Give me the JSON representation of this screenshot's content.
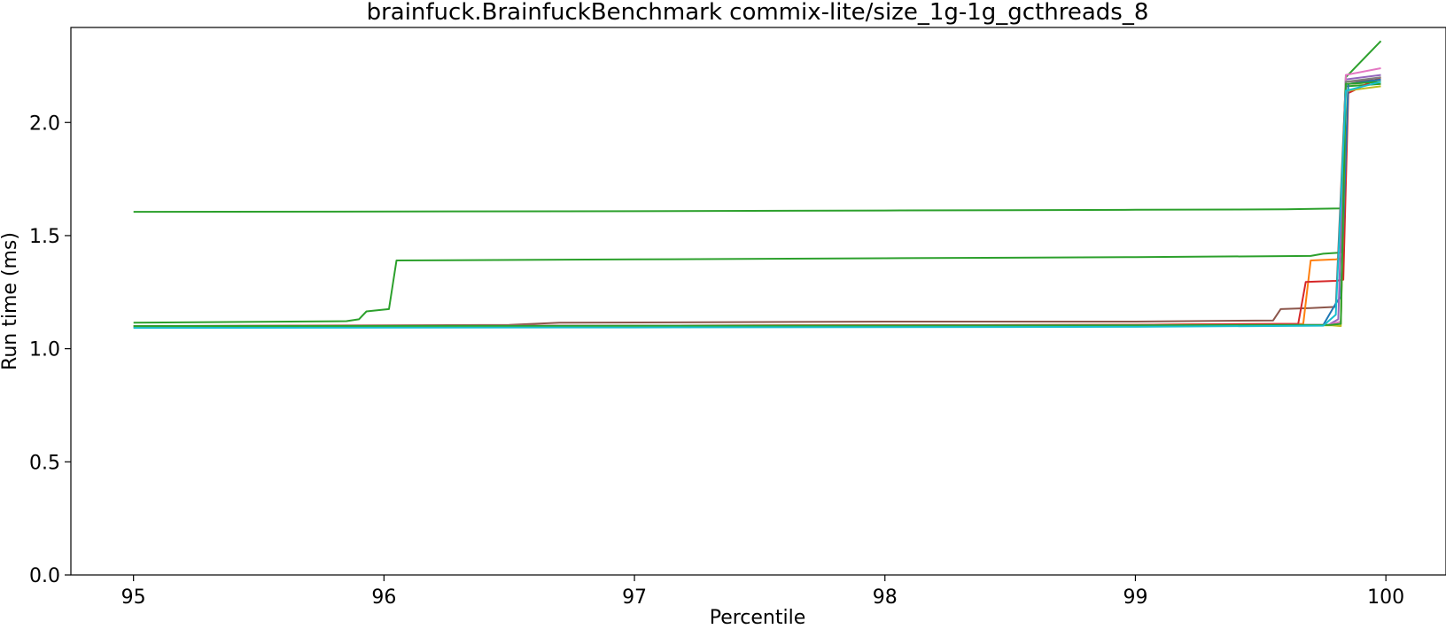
{
  "chart_data": {
    "type": "line",
    "title": "brainfuck.BrainfuckBenchmark commix-lite/size_1g-1g_gcthreads_8",
    "xlabel": "Percentile",
    "ylabel": "Run time (ms)",
    "xlim": [
      94.75,
      100.24
    ],
    "ylim": [
      0.0,
      2.42
    ],
    "xticks": [
      "95",
      "96",
      "97",
      "98",
      "99",
      "100"
    ],
    "yticks": [
      "0.0",
      "0.5",
      "1.0",
      "1.5",
      "2.0"
    ],
    "grid": false,
    "legend": "none",
    "series": [
      {
        "color": "#2ca02c",
        "points": [
          [
            95,
            1.605
          ],
          [
            97,
            1.608
          ],
          [
            98,
            1.611
          ],
          [
            99,
            1.614
          ],
          [
            99.6,
            1.616
          ],
          [
            99.82,
            1.62
          ],
          [
            99.84,
            2.2
          ],
          [
            99.98,
            2.36
          ]
        ]
      },
      {
        "color": "#2ca02c",
        "points": [
          [
            95,
            1.115
          ],
          [
            95.85,
            1.122
          ],
          [
            95.9,
            1.13
          ],
          [
            95.93,
            1.165
          ],
          [
            96.02,
            1.175
          ],
          [
            96.05,
            1.39
          ],
          [
            97,
            1.395
          ],
          [
            98,
            1.4
          ],
          [
            99,
            1.405
          ],
          [
            99.7,
            1.41
          ],
          [
            99.75,
            1.42
          ],
          [
            99.82,
            1.425
          ],
          [
            99.84,
            2.16
          ],
          [
            99.98,
            2.17
          ]
        ]
      },
      {
        "color": "#8c564b",
        "points": [
          [
            95,
            1.1
          ],
          [
            96.5,
            1.105
          ],
          [
            96.7,
            1.115
          ],
          [
            98,
            1.12
          ],
          [
            99,
            1.12
          ],
          [
            99.55,
            1.125
          ],
          [
            99.58,
            1.175
          ],
          [
            99.7,
            1.18
          ],
          [
            99.8,
            1.185
          ],
          [
            99.84,
            2.18
          ],
          [
            99.98,
            2.19
          ]
        ]
      },
      {
        "color": "#ff7f0e",
        "points": [
          [
            95,
            1.1
          ],
          [
            97,
            1.102
          ],
          [
            98,
            1.104
          ],
          [
            99,
            1.106
          ],
          [
            99.67,
            1.11
          ],
          [
            99.7,
            1.39
          ],
          [
            99.8,
            1.395
          ],
          [
            99.83,
            1.4
          ],
          [
            99.85,
            2.17
          ],
          [
            99.98,
            2.18
          ]
        ]
      },
      {
        "color": "#d62728",
        "points": [
          [
            95,
            1.1
          ],
          [
            97,
            1.102
          ],
          [
            99,
            1.106
          ],
          [
            99.65,
            1.11
          ],
          [
            99.68,
            1.295
          ],
          [
            99.8,
            1.3
          ],
          [
            99.83,
            1.305
          ],
          [
            99.85,
            2.13
          ],
          [
            99.98,
            2.2
          ]
        ]
      },
      {
        "color": "#1f77b4",
        "points": [
          [
            95,
            1.095
          ],
          [
            97,
            1.097
          ],
          [
            99,
            1.1
          ],
          [
            99.75,
            1.105
          ],
          [
            99.8,
            1.2
          ],
          [
            99.82,
            1.23
          ],
          [
            99.85,
            2.17
          ],
          [
            99.98,
            2.19
          ]
        ]
      },
      {
        "color": "#9467bd",
        "points": [
          [
            95,
            1.095
          ],
          [
            97,
            1.097
          ],
          [
            99,
            1.1
          ],
          [
            99.77,
            1.105
          ],
          [
            99.81,
            1.13
          ],
          [
            99.84,
            2.19
          ],
          [
            99.98,
            2.21
          ]
        ]
      },
      {
        "color": "#e377c2",
        "points": [
          [
            95,
            1.1
          ],
          [
            97,
            1.102
          ],
          [
            99,
            1.104
          ],
          [
            99.77,
            1.106
          ],
          [
            99.82,
            1.12
          ],
          [
            99.84,
            2.21
          ],
          [
            99.98,
            2.24
          ]
        ]
      },
      {
        "color": "#7f7f7f",
        "points": [
          [
            95,
            1.1
          ],
          [
            97,
            1.101
          ],
          [
            99,
            1.103
          ],
          [
            99.78,
            1.105
          ],
          [
            99.82,
            1.11
          ],
          [
            99.84,
            2.18
          ],
          [
            99.98,
            2.2
          ]
        ]
      },
      {
        "color": "#bcbd22",
        "points": [
          [
            95,
            1.098
          ],
          [
            97,
            1.1
          ],
          [
            99,
            1.102
          ],
          [
            99.78,
            1.104
          ],
          [
            99.82,
            1.1
          ],
          [
            99.84,
            2.14
          ],
          [
            99.98,
            2.16
          ]
        ]
      },
      {
        "color": "#2ca02c",
        "points": [
          [
            95,
            1.1
          ],
          [
            97,
            1.101
          ],
          [
            99,
            1.103
          ],
          [
            99.78,
            1.105
          ],
          [
            99.82,
            1.11
          ],
          [
            99.84,
            2.17
          ],
          [
            99.98,
            2.18
          ]
        ]
      },
      {
        "color": "#17becf",
        "points": [
          [
            95,
            1.092
          ],
          [
            97,
            1.094
          ],
          [
            99,
            1.097
          ],
          [
            99.75,
            1.102
          ],
          [
            99.8,
            1.15
          ],
          [
            99.84,
            2.14
          ],
          [
            99.98,
            2.18
          ]
        ]
      }
    ]
  }
}
